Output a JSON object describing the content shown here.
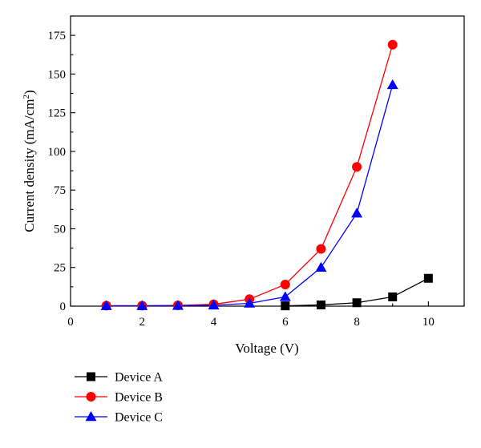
{
  "chart_data": {
    "type": "line",
    "title": "",
    "xlabel": "Voltage (V)",
    "ylabel": "Current density (mA/cm",
    "ylabel_superscript": "2",
    "ylabel_tail": ")",
    "xlim": [
      0,
      11
    ],
    "ylim": [
      0,
      187.5
    ],
    "xticks": [
      0,
      2,
      4,
      6,
      8,
      10
    ],
    "yticks": [
      0,
      25,
      50,
      75,
      100,
      125,
      150,
      175
    ],
    "grid": false,
    "legend_position": "below-left",
    "series": [
      {
        "name": "Device A",
        "color": "#000000",
        "marker": "square",
        "x": [
          6,
          7,
          8,
          9,
          10
        ],
        "y": [
          0.2,
          0.8,
          2.2,
          6,
          18
        ]
      },
      {
        "name": "Device B",
        "color": "#ff0000",
        "marker": "circle",
        "x": [
          1,
          2,
          3,
          4,
          5,
          6,
          7,
          8,
          9
        ],
        "y": [
          0.3,
          0.3,
          0.5,
          1.2,
          4.5,
          14,
          37,
          90,
          169
        ]
      },
      {
        "name": "Device C",
        "color": "#0000ff",
        "marker": "triangle",
        "x": [
          1,
          2,
          3,
          4,
          5,
          6,
          7,
          8,
          9
        ],
        "y": [
          0.2,
          0.2,
          0.3,
          0.6,
          1.8,
          6,
          25,
          60,
          143
        ]
      }
    ]
  }
}
